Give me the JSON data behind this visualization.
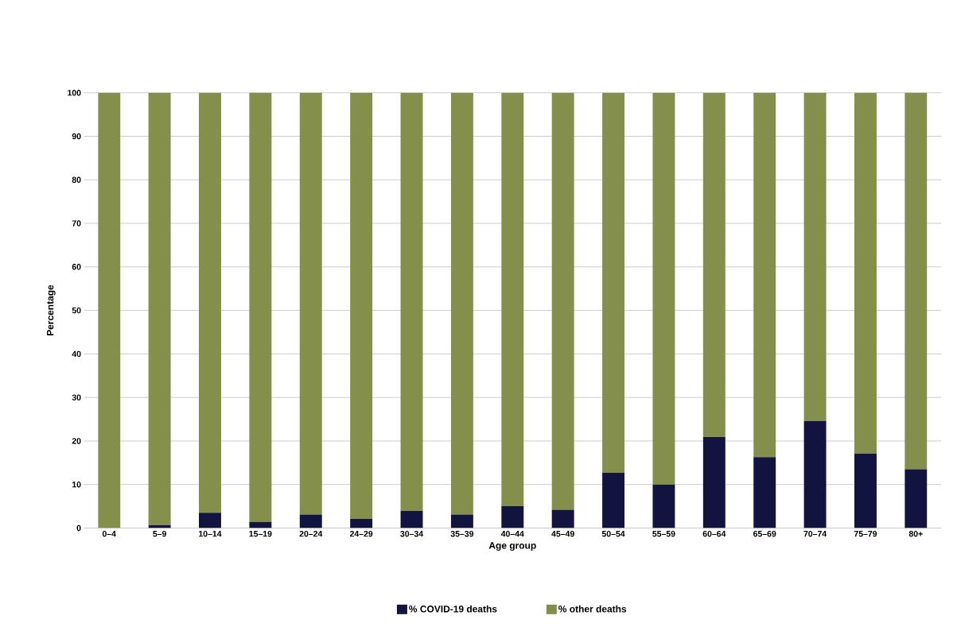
{
  "chart_data": {
    "type": "bar",
    "stacked": true,
    "xlabel": "Age group",
    "ylabel": "Percentage",
    "categories": [
      "0–4",
      "5–9",
      "10–14",
      "15–19",
      "20–24",
      "24–29",
      "30–34",
      "35–39",
      "40–44",
      "45–49",
      "50–54",
      "55–59",
      "60–64",
      "65–69",
      "70–74",
      "75–79",
      "80+"
    ],
    "series": [
      {
        "name": "% COVID-19 deaths",
        "color": "#12133f",
        "values": [
          0,
          0.7,
          3.5,
          1.4,
          3.1,
          2.1,
          3.9,
          3.1,
          5.0,
          4.2,
          12.7,
          10.0,
          20.9,
          16.3,
          24.6,
          17.1,
          13.5
        ]
      },
      {
        "name": "% other deaths",
        "color": "#838f4a",
        "values": [
          100,
          99.3,
          96.5,
          98.6,
          96.9,
          97.9,
          96.1,
          96.9,
          95.0,
          95.8,
          87.3,
          90.0,
          79.1,
          83.7,
          75.4,
          82.9,
          86.5
        ]
      }
    ],
    "ylim": [
      0,
      100
    ],
    "yticks": [
      0,
      10,
      20,
      30,
      40,
      50,
      60,
      70,
      80,
      90,
      100
    ],
    "grid": "y",
    "legend": "bottom"
  }
}
